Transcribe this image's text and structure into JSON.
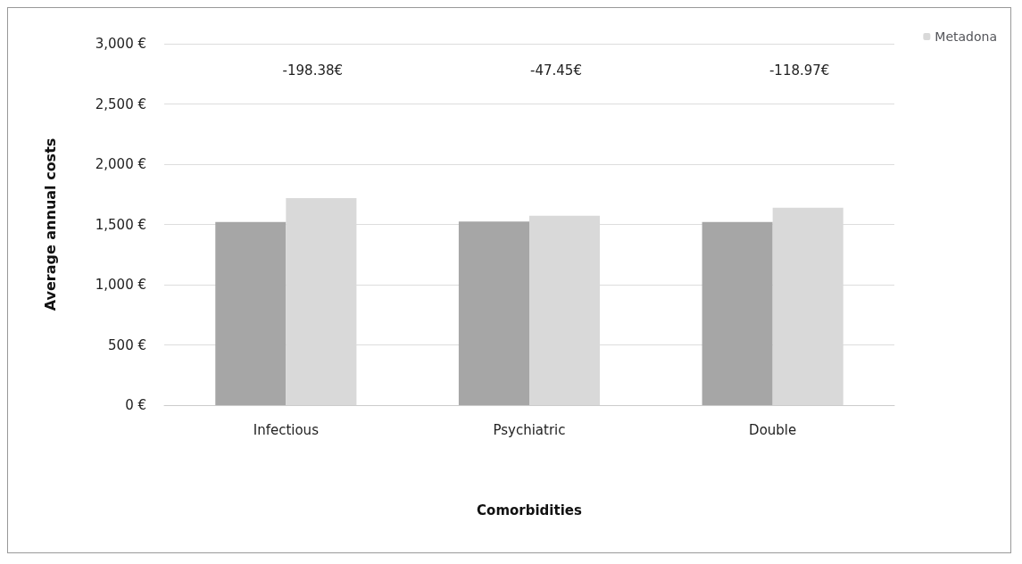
{
  "chart_data": {
    "type": "bar",
    "xlabel": "Comorbidities",
    "ylabel": "Average annual costs",
    "categories": [
      "Infectious",
      "Psychiatric",
      "Double"
    ],
    "series": [
      {
        "color": "#a6a6a6",
        "values": [
          1520,
          1525,
          1520
        ]
      },
      {
        "name": "Metadona",
        "color": "#d9d9d9",
        "values": [
          1718,
          1572,
          1639
        ]
      }
    ],
    "ylim": [
      0,
      3000
    ],
    "yticks": [
      {
        "value": 0,
        "label": "0 €"
      },
      {
        "value": 500,
        "label": "500 €"
      },
      {
        "value": 1000,
        "label": "1,000 €"
      },
      {
        "value": 1500,
        "label": "1,500 €"
      },
      {
        "value": 2000,
        "label": "2,000 €"
      },
      {
        "value": 2500,
        "label": "2,500 €"
      },
      {
        "value": 3000,
        "label": "3,000 €"
      }
    ],
    "annotations": [
      "-198.38€",
      "-47.45€",
      "-118.97€"
    ],
    "grid": "y",
    "legend": "top right"
  }
}
